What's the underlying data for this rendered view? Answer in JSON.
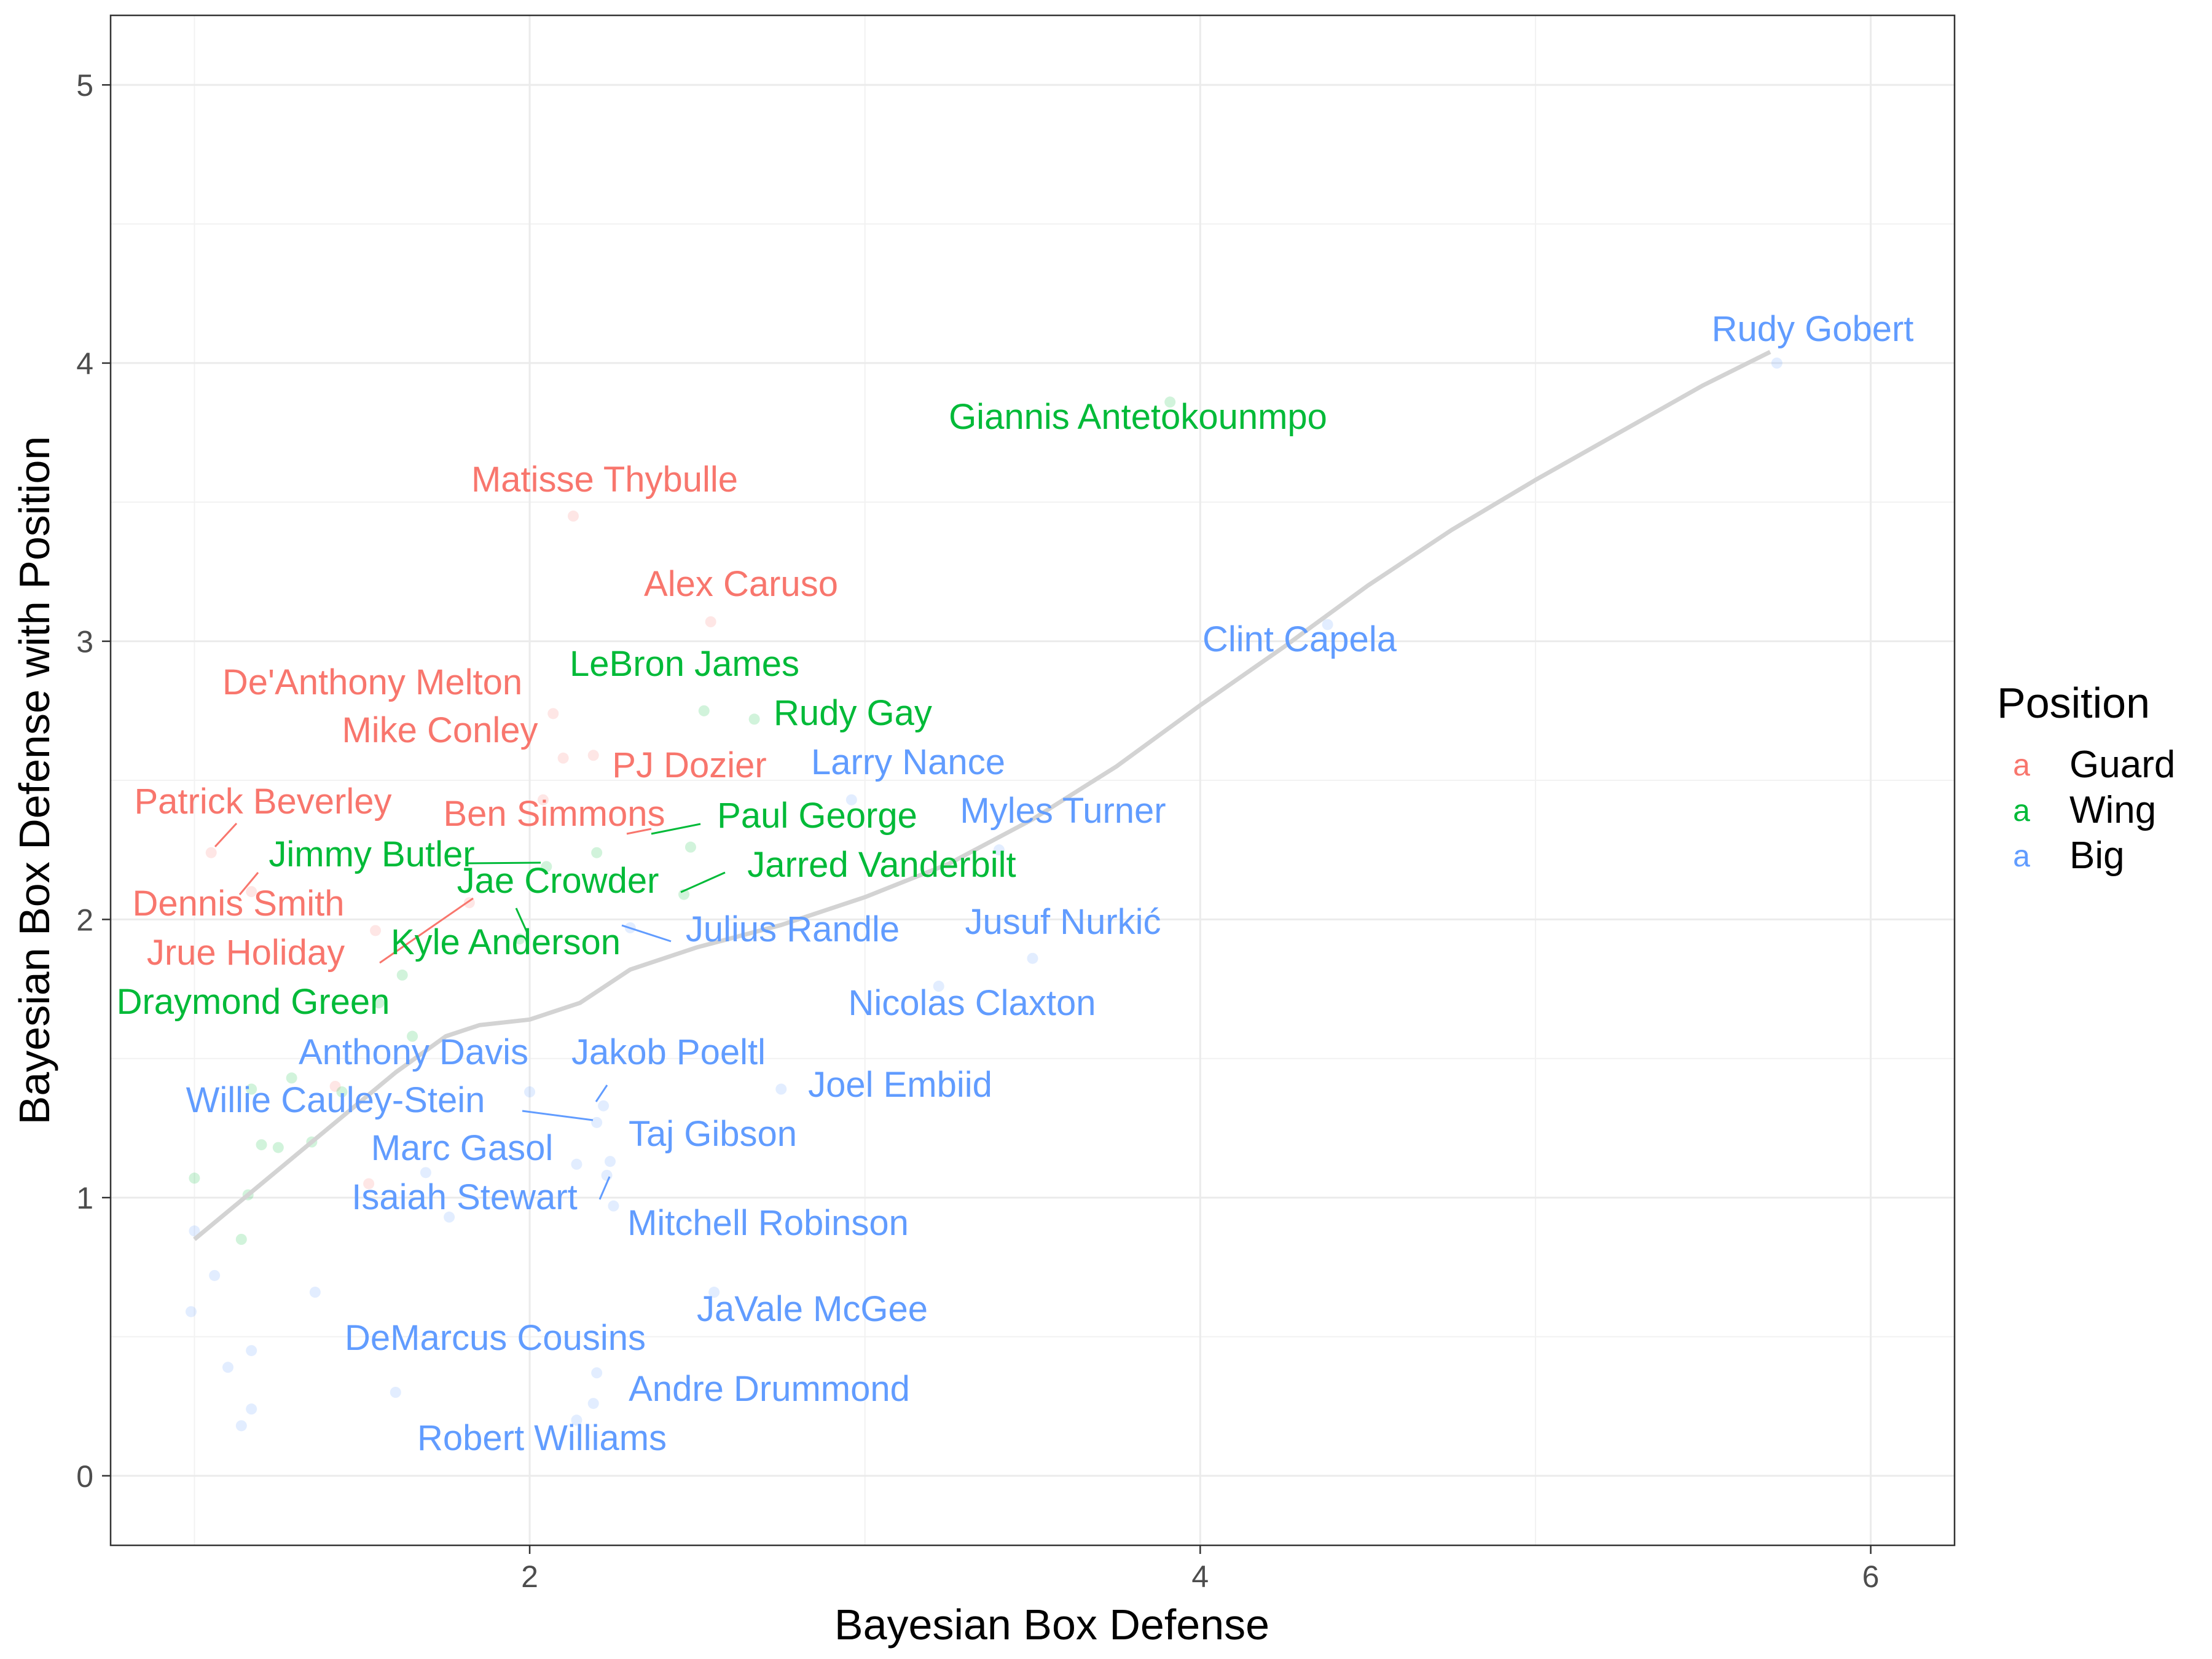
{
  "chart_data": {
    "type": "scatter",
    "title": "",
    "xlabel": "Bayesian Box Defense",
    "ylabel": "Bayesian Box Defense with Position",
    "xlim": [
      0.75,
      6.25
    ],
    "ylim": [
      -0.25,
      5.25
    ],
    "xticks": [
      2,
      4,
      6
    ],
    "yticks": [
      0,
      1,
      2,
      3,
      4,
      5
    ],
    "grid": true,
    "legend": {
      "title": "Position",
      "placement": "right",
      "key_glyph": "a",
      "entries": [
        {
          "name": "Guard",
          "color": "#F8766D"
        },
        {
          "name": "Wing",
          "color": "#00BA38"
        },
        {
          "name": "Big",
          "color": "#619CFF"
        }
      ]
    },
    "smooth_line": {
      "color": "#D3D3D3",
      "points": [
        [
          1.0,
          0.85
        ],
        [
          1.2,
          1.05
        ],
        [
          1.4,
          1.25
        ],
        [
          1.6,
          1.45
        ],
        [
          1.75,
          1.58
        ],
        [
          1.85,
          1.62
        ],
        [
          2.0,
          1.64
        ],
        [
          2.15,
          1.7
        ],
        [
          2.3,
          1.82
        ],
        [
          2.5,
          1.9
        ],
        [
          2.75,
          1.98
        ],
        [
          3.0,
          2.08
        ],
        [
          3.25,
          2.2
        ],
        [
          3.5,
          2.36
        ],
        [
          3.75,
          2.55
        ],
        [
          4.0,
          2.77
        ],
        [
          4.25,
          2.98
        ],
        [
          4.5,
          3.2
        ],
        [
          4.75,
          3.4
        ],
        [
          5.0,
          3.58
        ],
        [
          5.25,
          3.75
        ],
        [
          5.5,
          3.92
        ],
        [
          5.7,
          4.04
        ]
      ]
    },
    "labeled_points": [
      {
        "name": "Rudy Gobert",
        "position": "Big",
        "x": 5.72,
        "y": 4.0
      },
      {
        "name": "Giannis Antetokounmpo",
        "position": "Wing",
        "x": 3.91,
        "y": 3.86
      },
      {
        "name": "Matisse Thybulle",
        "position": "Guard",
        "x": 2.13,
        "y": 3.45
      },
      {
        "name": "Alex Caruso",
        "position": "Guard",
        "x": 2.54,
        "y": 3.07
      },
      {
        "name": "Clint Capela",
        "position": "Big",
        "x": 4.38,
        "y": 3.06
      },
      {
        "name": "LeBron James",
        "position": "Wing",
        "x": 2.52,
        "y": 2.75
      },
      {
        "name": "De'Anthony Melton",
        "position": "Guard",
        "x": 2.07,
        "y": 2.74
      },
      {
        "name": "Rudy Gay",
        "position": "Wing",
        "x": 2.67,
        "y": 2.72
      },
      {
        "name": "Mike Conley",
        "position": "Guard",
        "x": 2.1,
        "y": 2.58
      },
      {
        "name": "PJ Dozier",
        "position": "Guard",
        "x": 2.19,
        "y": 2.59
      },
      {
        "name": "Larry Nance",
        "position": "Big",
        "x": 2.96,
        "y": 2.43
      },
      {
        "name": "Ben Simmons",
        "position": "Guard",
        "x": 2.04,
        "y": 2.43
      },
      {
        "name": "Patrick Beverley",
        "position": "Guard",
        "x": 1.05,
        "y": 2.24
      },
      {
        "name": "Paul George",
        "position": "Wing",
        "x": 2.48,
        "y": 2.26
      },
      {
        "name": "Myles Turner",
        "position": "Big",
        "x": 3.4,
        "y": 2.25
      },
      {
        "name": "Jimmy Butler",
        "position": "Wing",
        "x": 2.05,
        "y": 2.19
      },
      {
        "name": "Jarred Vanderbilt",
        "position": "Wing",
        "x": 2.46,
        "y": 2.09
      },
      {
        "name": "Jae Crowder",
        "position": "Wing",
        "x": 1.97,
        "y": 1.93
      },
      {
        "name": "Dennis Smith",
        "position": "Guard",
        "x": 1.17,
        "y": 2.1
      },
      {
        "name": "Julius Randle",
        "position": "Big",
        "x": 2.3,
        "y": 1.97
      },
      {
        "name": "Jusuf Nurkić",
        "position": "Big",
        "x": 3.5,
        "y": 1.86
      },
      {
        "name": "Jrue Holiday",
        "position": "Guard",
        "x": 1.82,
        "y": 2.06
      },
      {
        "name": "Kyle Anderson",
        "position": "Wing",
        "x": 1.62,
        "y": 1.8
      },
      {
        "name": "Draymond Green",
        "position": "Wing",
        "x": 1.55,
        "y": 1.7
      },
      {
        "name": "Nicolas Claxton",
        "position": "Big",
        "x": 3.22,
        "y": 1.76
      },
      {
        "name": "Anthony Davis",
        "position": "Big",
        "x": 2.0,
        "y": 1.38
      },
      {
        "name": "Jakob Poeltl",
        "position": "Big",
        "x": 2.22,
        "y": 1.33
      },
      {
        "name": "Joel Embiid",
        "position": "Big",
        "x": 2.75,
        "y": 1.39
      },
      {
        "name": "Willie Cauley-Stein",
        "position": "Big",
        "x": 2.2,
        "y": 1.27
      },
      {
        "name": "Taj Gibson",
        "position": "Big",
        "x": 2.24,
        "y": 1.13
      },
      {
        "name": "Marc Gasol",
        "position": "Big",
        "x": 2.14,
        "y": 1.12
      },
      {
        "name": "Isaiah Stewart",
        "position": "Big",
        "x": 2.23,
        "y": 1.08
      },
      {
        "name": "Mitchell Robinson",
        "position": "Big",
        "x": 2.25,
        "y": 0.97
      },
      {
        "name": "JaVale McGee",
        "position": "Big",
        "x": 2.55,
        "y": 0.66
      },
      {
        "name": "DeMarcus Cousins",
        "position": "Big",
        "x": 2.2,
        "y": 0.37
      },
      {
        "name": "Andre Drummond",
        "position": "Big",
        "x": 2.19,
        "y": 0.26
      },
      {
        "name": "Robert Williams",
        "position": "Big",
        "x": 2.14,
        "y": 0.2
      }
    ],
    "other_points": [
      {
        "position": "Guard",
        "x": 1.54,
        "y": 1.96
      },
      {
        "position": "Guard",
        "x": 1.52,
        "y": 1.05
      },
      {
        "position": "Guard",
        "x": 1.42,
        "y": 1.4
      },
      {
        "position": "Wing",
        "x": 1.0,
        "y": 1.07
      },
      {
        "position": "Wing",
        "x": 1.17,
        "y": 1.39
      },
      {
        "position": "Wing",
        "x": 1.2,
        "y": 1.19
      },
      {
        "position": "Wing",
        "x": 1.25,
        "y": 1.18
      },
      {
        "position": "Wing",
        "x": 1.29,
        "y": 1.43
      },
      {
        "position": "Wing",
        "x": 1.14,
        "y": 0.85
      },
      {
        "position": "Wing",
        "x": 1.16,
        "y": 1.01
      },
      {
        "position": "Wing",
        "x": 1.35,
        "y": 1.2
      },
      {
        "position": "Wing",
        "x": 1.44,
        "y": 1.38
      },
      {
        "position": "Wing",
        "x": 1.65,
        "y": 1.58
      },
      {
        "position": "Wing",
        "x": 2.2,
        "y": 2.24
      },
      {
        "position": "Big",
        "x": 0.99,
        "y": 0.59
      },
      {
        "position": "Big",
        "x": 1.06,
        "y": 0.72
      },
      {
        "position": "Big",
        "x": 1.1,
        "y": 0.39
      },
      {
        "position": "Big",
        "x": 1.14,
        "y": 0.18
      },
      {
        "position": "Big",
        "x": 1.17,
        "y": 0.24
      },
      {
        "position": "Big",
        "x": 1.17,
        "y": 0.45
      },
      {
        "position": "Big",
        "x": 1.36,
        "y": 0.66
      },
      {
        "position": "Big",
        "x": 1.6,
        "y": 0.3
      },
      {
        "position": "Big",
        "x": 1.76,
        "y": 0.93
      },
      {
        "position": "Big",
        "x": 1.69,
        "y": 1.09
      },
      {
        "position": "Big",
        "x": 1.0,
        "y": 0.88
      }
    ]
  }
}
